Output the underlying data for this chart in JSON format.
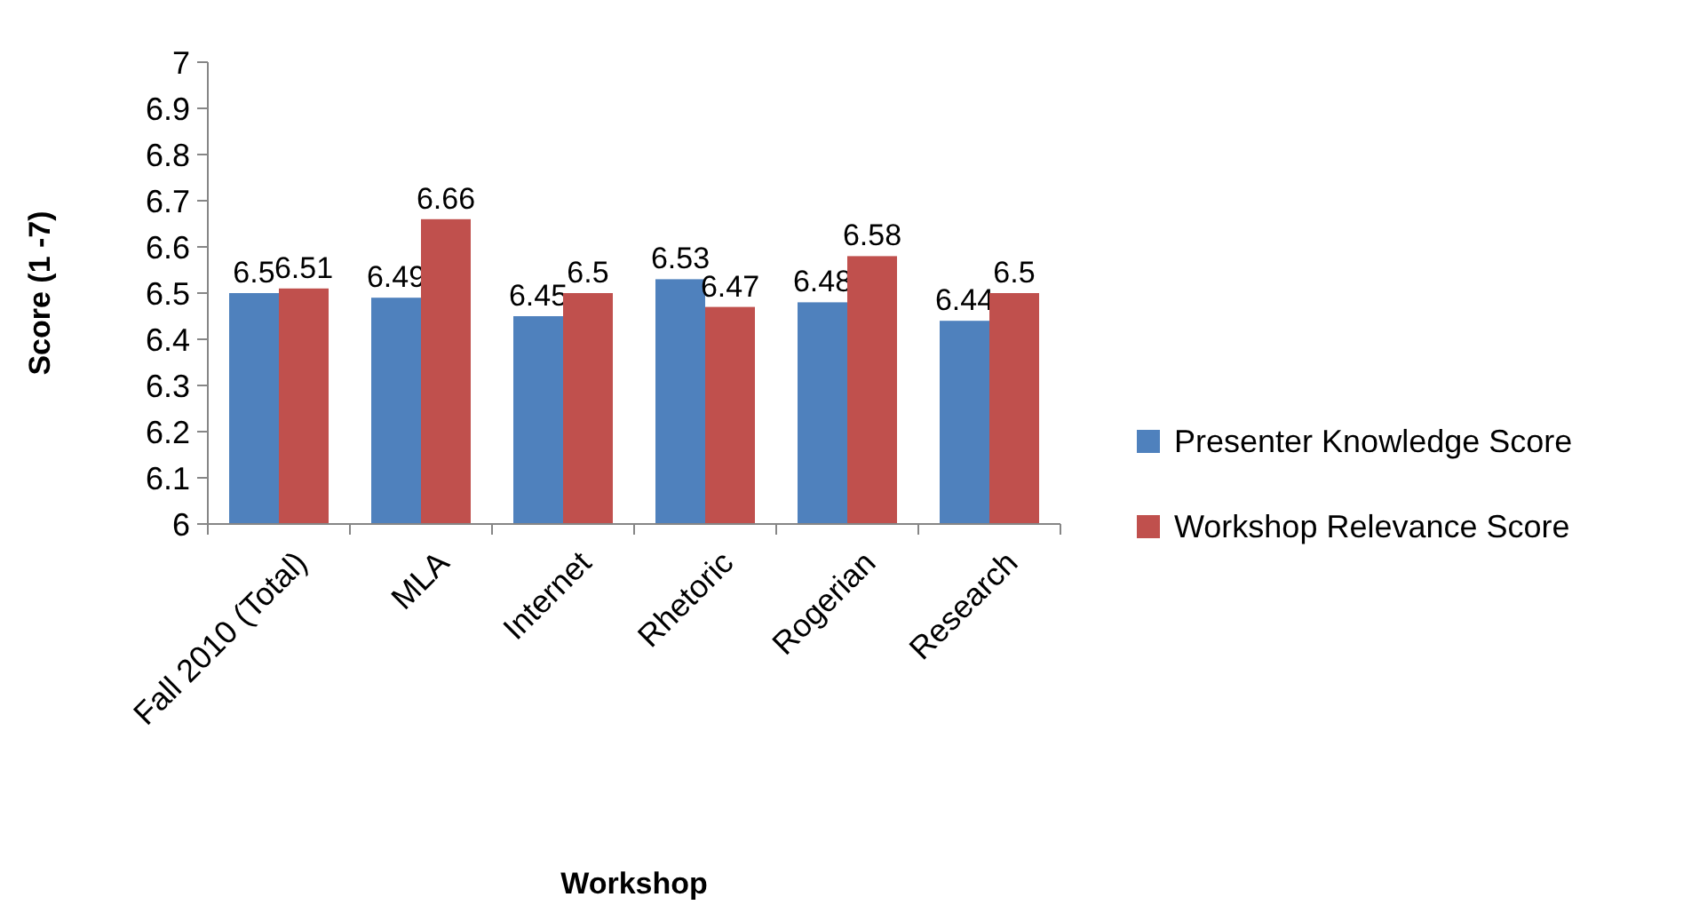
{
  "chart_data": {
    "type": "bar",
    "xlabel": "Workshop",
    "ylabel": "Score (1 -7)",
    "categories": [
      "Fall 2010 (Total)",
      "MLA",
      "Internet",
      "Rhetoric",
      "Rogerian",
      "Research"
    ],
    "series": [
      {
        "name": "Presenter Knowledge Score",
        "color": "#4f81bd",
        "values": [
          6.5,
          6.49,
          6.45,
          6.53,
          6.48,
          6.44
        ]
      },
      {
        "name": "Workshop Relevance Score",
        "color": "#c0504d",
        "values": [
          6.51,
          6.66,
          6.5,
          6.47,
          6.58,
          6.5
        ]
      }
    ],
    "ylim": [
      6,
      7
    ],
    "yticks": [
      6,
      6.1,
      6.2,
      6.3,
      6.4,
      6.5,
      6.6,
      6.7,
      6.8,
      6.9,
      7
    ],
    "data_labels": true,
    "legend": "right",
    "grid": false
  }
}
